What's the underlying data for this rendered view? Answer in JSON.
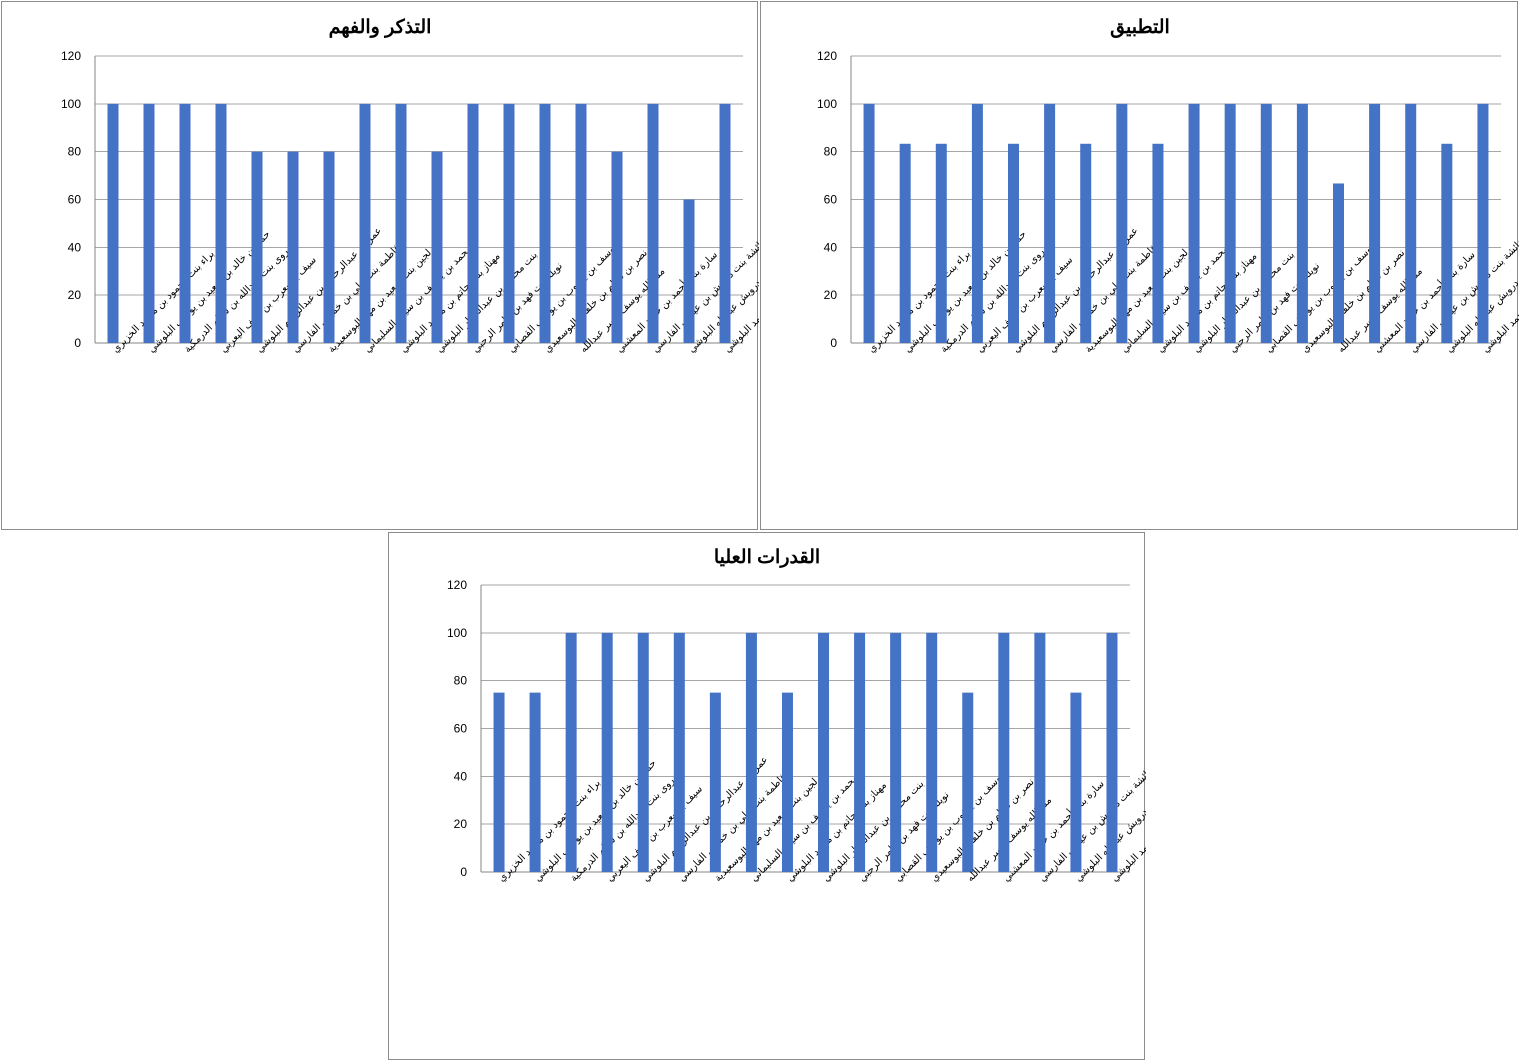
{
  "chart_data": [
    {
      "type": "bar",
      "title": "التذكر والفهم",
      "xlabel": "",
      "ylabel": "",
      "ylim": [
        0,
        120
      ],
      "yticks": [
        0,
        20,
        40,
        60,
        80,
        100,
        120
      ],
      "grid": true,
      "bar_color": "#4472C4",
      "categories": [
        "براء بنت محمود بن محمد الخزيري",
        "حمد بن خالد بن سعيد بن يوسف البلوشي",
        "روى بنت عبدالله بن سالم الدرمكية",
        "سيف بن يعرب بن سيف اليعربي",
        "عمر بن عبدالرحمن بن عبدالرحيم البلوشي",
        "فاطمة بنت علي بن خميس الفارسي",
        "لجين بنت سعيد بن مهنا البوسعيدية",
        "محمد بن يوسف بن سيف السليماني",
        "مهناز بنت حاتم بن محمد البلوشي",
        "نور بنت محمود بن عبدالستار البلوشي",
        "نويلة بنت فهد بن عامر الرحبي",
        "يوسف بن يعقوب بن يوسف القصابي",
        "نصر بن سالم بن خلفان البوسعيدي",
        "منه الله يوسف السر عبدالله",
        "سارة بنت أحمد بن حميد المعشني",
        "عائشة بنت درويش بن عيسى الفارسي",
        "فراس سعيد درويش عبدالله درويش عبدالله البلوشي",
        "محمد بن جاسم بن محمد البلوشي"
      ],
      "values": [
        100,
        100,
        100,
        100,
        80,
        80,
        80,
        100,
        100,
        80,
        100,
        100,
        100,
        100,
        80,
        100,
        60,
        100
      ]
    },
    {
      "type": "bar",
      "title": "التطبيق",
      "xlabel": "",
      "ylabel": "",
      "ylim": [
        0,
        120
      ],
      "yticks": [
        0,
        20,
        40,
        60,
        80,
        100,
        120
      ],
      "grid": true,
      "bar_color": "#4472C4",
      "categories": [
        "براء بنت محمود بن محمد الخزيري",
        "حمد بن خالد بن سعيد بن يوسف البلوشي",
        "روى بنت عبدالله بن سالم الدرمكية",
        "سيف بن يعرب بن سيف اليعربي",
        "عمر بن عبدالرحمن بن عبدالرحيم البلوشي",
        "فاطمة بنت علي بن خميس الفارسي",
        "لجين بنت سعيد بن مهنا البوسعيدية",
        "محمد بن يوسف بن سيف السليماني",
        "مهناز بنت حاتم بن محمد البلوشي",
        "نور بنت محمود بن عبدالستار البلوشي",
        "نويلة بنت فهد بن عامر الرحبي",
        "يوسف بن يعقوب بن يوسف القصابي",
        "نصر بن سالم بن خلفان البوسعيدي",
        "منه الله يوسف السر عبدالله",
        "سارة بنت أحمد بن حميد المعشني",
        "عائشة بنت درويش بن عيسى الفارسي",
        "فراس سعيد درويش عبدالله درويش عبدالله البلوشي",
        "محمد بن جاسم بن محمد البلوشي"
      ],
      "values": [
        100,
        83.3,
        83.3,
        100,
        83.3,
        100,
        83.3,
        100,
        83.3,
        100,
        100,
        100,
        100,
        66.7,
        100,
        100,
        83.3,
        100
      ]
    },
    {
      "type": "bar",
      "title": "القدرات العليا",
      "xlabel": "",
      "ylabel": "",
      "ylim": [
        0,
        120
      ],
      "yticks": [
        0,
        20,
        40,
        60,
        80,
        100,
        120
      ],
      "grid": true,
      "bar_color": "#4472C4",
      "categories": [
        "براء بنت محمود بن محمد الخزيري",
        "حمد بن خالد بن سعيد بن يوسف البلوشي",
        "روى بنت عبدالله بن سالم الدرمكية",
        "سيف بن يعرب بن سيف اليعربي",
        "عمر بن عبدالرحمن بن عبدالرحيم البلوشي",
        "فاطمة بنت علي بن خميس الفارسي",
        "لجين بنت سعيد بن مهنا البوسعيدية",
        "محمد بن يوسف بن سيف السليماني",
        "مهناز بنت حاتم بن محمد البلوشي",
        "نور بنت محمود بن عبدالستار البلوشي",
        "نويلة بنت فهد بن عامر الرحبي",
        "يوسف بن يعقوب بن يوسف القصابي",
        "نصر بن سالم بن خلفان البوسعيدي",
        "منه الله يوسف السر عبدالله",
        "سارة بنت أحمد بن حميد المعشني",
        "عائشة بنت درويش بن عيسى الفارسي",
        "فراس سعيد درويش عبدالله درويش عبدالله البلوشي",
        "محمد بن جاسم بن محمد البلوشي"
      ],
      "values": [
        75,
        75,
        100,
        100,
        100,
        100,
        75,
        100,
        75,
        100,
        100,
        100,
        100,
        75,
        100,
        100,
        75,
        100
      ]
    }
  ]
}
